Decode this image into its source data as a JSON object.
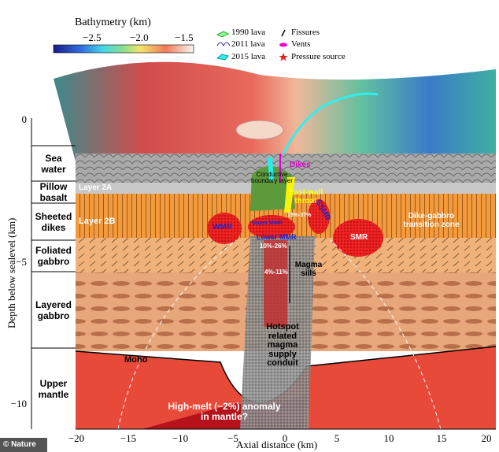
{
  "colorbar": {
    "title": "Bathymetry (km)",
    "ticks": [
      "−2.5",
      "−2.0",
      "−1.5"
    ]
  },
  "legend": [
    "1990 lava",
    "2011 lava",
    "2015 lava",
    "Fissures",
    "Vents",
    "Pressure source"
  ],
  "y_axis": {
    "label": "Depth below sealevel (km)",
    "ticks": [
      "0",
      "−5",
      "−10"
    ]
  },
  "x_axis": {
    "label": "Axial distance (km)",
    "ticks": [
      "−20",
      "−15",
      "−10",
      "−5",
      "0",
      "5",
      "10",
      "15",
      "20"
    ]
  },
  "layers": [
    "Sea water",
    "Pillow basalt",
    "Sheeted dikes",
    "Foliated gabbro",
    "Layered gabbro",
    "Upper mantle"
  ],
  "annotations": {
    "dikes": "Dikes",
    "layer_2a": "Layer 2A",
    "layer_2b": "Layer 2B",
    "cbl": "Conductive boundary layer",
    "throat": "East-wall throat",
    "transition": "Dike-gabbro transition zone",
    "wmr": "WMR",
    "smr": "SMR",
    "ssmr": "SSMR",
    "upper_mmr": "Upper MMR",
    "upper_pct": "15%-37%",
    "lower_mmr": "Lower MMR",
    "lower_pct": "10%-26%",
    "sills": "Magma sills",
    "sills_pct": "4%-11%",
    "conduit": "Hotspot related magma supply conduit",
    "moho": "Moho",
    "anomaly": "High-melt (~2%) anomaly in mantle?"
  },
  "credit": "© Nature"
}
